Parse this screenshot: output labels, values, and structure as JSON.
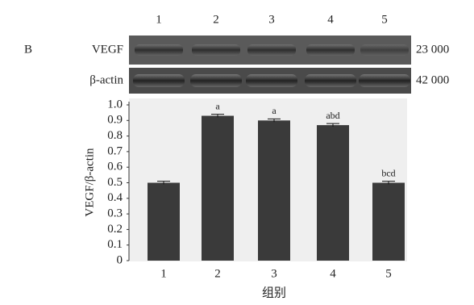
{
  "panel_label": "B",
  "blot": {
    "lanes": [
      "1",
      "2",
      "3",
      "4",
      "5"
    ],
    "rows": [
      {
        "label": "VEGF",
        "mw": "23 000"
      },
      {
        "label": "β-actin",
        "mw": "42 000"
      }
    ]
  },
  "chart_data": {
    "type": "bar",
    "categories": [
      "1",
      "2",
      "3",
      "4",
      "5"
    ],
    "values": [
      0.5,
      0.93,
      0.9,
      0.87,
      0.5
    ],
    "errors": [
      0.01,
      0.01,
      0.01,
      0.01,
      0.01
    ],
    "annotations": [
      null,
      "a",
      "a",
      "abd",
      "bcd"
    ],
    "color": "#3a3a3a",
    "ylim": [
      0,
      1.0
    ],
    "yticks": [
      0,
      0.1,
      0.2,
      0.3,
      0.4,
      0.5,
      0.6,
      0.7,
      0.8,
      0.9,
      {
        "value": 1.0,
        "label": "1.0"
      }
    ],
    "ylabel": "VEGF/β-actin",
    "xlabel": "组别"
  }
}
